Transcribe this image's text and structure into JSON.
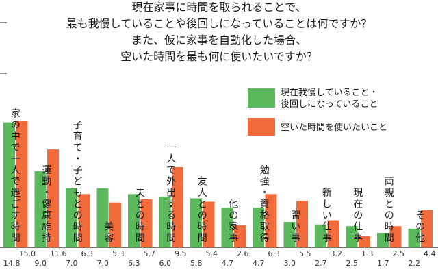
{
  "chart_data": {
    "type": "bar",
    "title_lines": [
      "現在家事に時間を取られることで、",
      "最も我慢していることや後回しになっていることは何ですか？",
      "また、仮に家事を自動化した場合、",
      "空いた時間を最も何に使いたいですか？"
    ],
    "categories": [
      "家の中で一人で過ごす時間",
      "運動・健康維持",
      "子育て・子どもとの時間",
      "美容",
      "夫との時間",
      "一人で外出する時間",
      "友人との時間",
      "他の家事",
      "勉強・資格取得",
      "習い事",
      "新しい仕事",
      "現在の仕事",
      "両親との時間",
      "その他"
    ],
    "series": [
      {
        "name": "現在我慢していること・後回しになっていること",
        "color": "#5cb85c",
        "values": [
          14.8,
          9.0,
          7.0,
          7.0,
          6.3,
          6.0,
          5.8,
          4.7,
          4.7,
          3.0,
          2.7,
          2.5,
          1.7,
          2.2
        ],
        "labels": [
          "14.8",
          "9.0",
          "7.0",
          "7.0",
          "6.3",
          "6.0",
          "5.8",
          "4.7",
          "4.7",
          "3.0",
          "2.7",
          "2.5",
          "1.7",
          "2.2"
        ]
      },
      {
        "name": "空いた時間を使いたいこと",
        "color": "#f26b3a",
        "values": [
          15.0,
          11.6,
          6.3,
          5.3,
          5.7,
          9.5,
          5.4,
          2.6,
          6.3,
          5.5,
          3.2,
          1.3,
          2.5,
          4.4
        ],
        "labels": [
          "15.0",
          "11.6",
          "6.3",
          "5.3",
          "5.7",
          "9.5",
          "5.4",
          "2.6",
          "6.3",
          "5.5",
          "3.2",
          "1.3",
          "2.5",
          "4.4"
        ]
      }
    ],
    "ylim": [
      0,
      15.5
    ],
    "grid": false,
    "legend_position": "top-right"
  }
}
